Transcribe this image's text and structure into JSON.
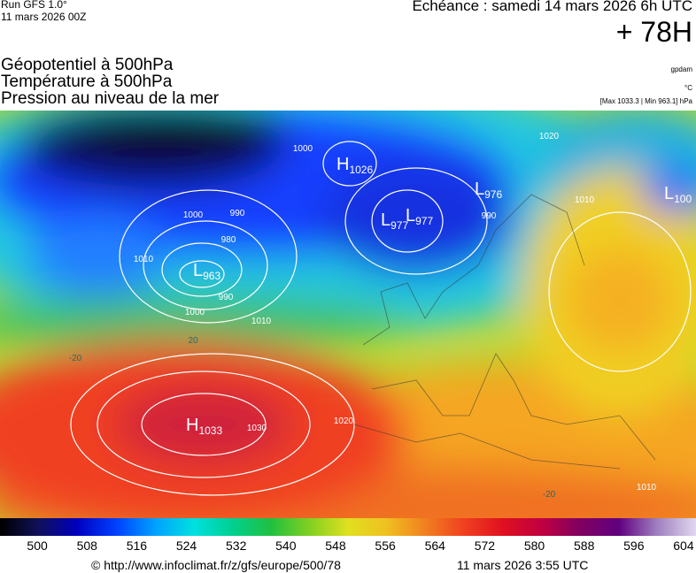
{
  "header": {
    "run": "Run GFS 1.0°",
    "run_date": "11 mars 2026 00Z",
    "valid": "Echéance : samedi 14 mars 2026 6h UTC",
    "lead": "+ 78H",
    "fields": [
      "Géopotentiel à 500hPa",
      "Température à 500hPa",
      "Pression au niveau de la mer"
    ],
    "unit_geo": "gpdam",
    "unit_temp": "°C",
    "extremes": "[Max 1033.3 | Min 963.1] hPa"
  },
  "map": {
    "centers": [
      {
        "letter": "L",
        "value": 963
      },
      {
        "letter": "H",
        "value": 1033
      },
      {
        "letter": "L",
        "value": 977
      },
      {
        "letter": "L",
        "value": 977
      },
      {
        "letter": "L",
        "value": 976
      },
      {
        "letter": "H",
        "value": 1026
      },
      {
        "letter": "L",
        "value": 100
      }
    ],
    "contour_labels": [
      1000,
      990,
      980,
      990,
      1000,
      1010,
      1010,
      1030,
      1020,
      1000,
      990,
      1020,
      1010,
      1010,
      -20,
      20,
      -20
    ]
  },
  "scale": {
    "lim": [
      494,
      606
    ],
    "ticks": [
      500,
      508,
      516,
      524,
      532,
      540,
      548,
      556,
      564,
      572,
      580,
      588,
      596,
      604
    ]
  },
  "footer": {
    "url": "© http://www.infoclimat.fr/z/gfs/europe/500/78",
    "time": "11 mars 2026  3:55 UTC"
  }
}
